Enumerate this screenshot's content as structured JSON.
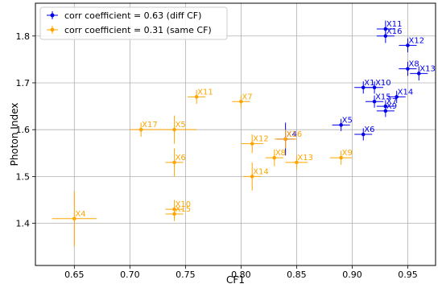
{
  "chart_data": {
    "type": "scatter",
    "title": "",
    "xlabel": "CF1",
    "ylabel": "Photon Index",
    "xlim": [
      0.615,
      0.975
    ],
    "ylim": [
      1.31,
      1.87
    ],
    "xticks": [
      0.65,
      0.7,
      0.75,
      0.8,
      0.85,
      0.9,
      0.95
    ],
    "xtick_labels": [
      "0.65",
      "0.70",
      "0.75",
      "0.80",
      "0.85",
      "0.90",
      "0.95"
    ],
    "yticks": [
      1.4,
      1.5,
      1.6,
      1.7,
      1.8
    ],
    "ytick_labels": [
      "1.4",
      "1.5",
      "1.6",
      "1.7",
      "1.8"
    ],
    "grid": true,
    "legend_position": "top-left",
    "series": [
      {
        "name": "corr coefficient = 0.63 (diff CF)",
        "color": "#0000ee",
        "points": [
          {
            "label": "X11",
            "x": 0.93,
            "y": 1.815,
            "xerr": 0.008,
            "yerr": 0.018
          },
          {
            "label": "X16",
            "x": 0.93,
            "y": 1.8,
            "xerr": 0.008,
            "yerr": 0.015
          },
          {
            "label": "X12",
            "x": 0.95,
            "y": 1.78,
            "xerr": 0.008,
            "yerr": 0.015
          },
          {
            "label": "X8",
            "x": 0.95,
            "y": 1.73,
            "xerr": 0.008,
            "yerr": 0.015
          },
          {
            "label": "X13",
            "x": 0.96,
            "y": 1.72,
            "xerr": 0.008,
            "yerr": 0.015
          },
          {
            "label": "X1",
            "x": 0.91,
            "y": 1.69,
            "xerr": 0.008,
            "yerr": 0.013
          },
          {
            "label": "X10",
            "x": 0.92,
            "y": 1.69,
            "xerr": 0.008,
            "yerr": 0.013
          },
          {
            "label": "X14",
            "x": 0.94,
            "y": 1.67,
            "xerr": 0.008,
            "yerr": 0.013
          },
          {
            "label": "X15",
            "x": 0.92,
            "y": 1.66,
            "xerr": 0.008,
            "yerr": 0.013
          },
          {
            "label": "X7",
            "x": 0.93,
            "y": 1.65,
            "xerr": 0.008,
            "yerr": 0.013
          },
          {
            "label": "X9",
            "x": 0.93,
            "y": 1.64,
            "xerr": 0.008,
            "yerr": 0.013
          },
          {
            "label": "X5",
            "x": 0.89,
            "y": 1.61,
            "xerr": 0.008,
            "yerr": 0.013
          },
          {
            "label": "X6",
            "x": 0.91,
            "y": 1.59,
            "xerr": 0.008,
            "yerr": 0.013
          },
          {
            "label": "X4",
            "x": 0.84,
            "y": 1.58,
            "xerr": 0.008,
            "yerr": 0.035
          }
        ]
      },
      {
        "name": "corr coefficient = 0.31 (same CF)",
        "color": "#ffa500",
        "points": [
          {
            "label": "X11",
            "x": 0.76,
            "y": 1.67,
            "xerr": 0.008,
            "yerr": 0.015
          },
          {
            "label": "X7",
            "x": 0.8,
            "y": 1.66,
            "xerr": 0.008,
            "yerr": 0.013
          },
          {
            "label": "X17",
            "x": 0.71,
            "y": 1.6,
            "xerr": 0.01,
            "yerr": 0.015
          },
          {
            "label": "X5",
            "x": 0.74,
            "y": 1.6,
            "xerr": 0.02,
            "yerr": 0.03
          },
          {
            "label": "X16",
            "x": 0.84,
            "y": 1.58,
            "xerr": 0.01,
            "yerr": 0.02
          },
          {
            "label": "X12",
            "x": 0.81,
            "y": 1.57,
            "xerr": 0.01,
            "yerr": 0.02
          },
          {
            "label": "X8",
            "x": 0.83,
            "y": 1.54,
            "xerr": 0.008,
            "yerr": 0.018
          },
          {
            "label": "X9",
            "x": 0.89,
            "y": 1.54,
            "xerr": 0.01,
            "yerr": 0.015
          },
          {
            "label": "X6",
            "x": 0.74,
            "y": 1.53,
            "xerr": 0.008,
            "yerr": 0.03
          },
          {
            "label": "X13",
            "x": 0.85,
            "y": 1.53,
            "xerr": 0.01,
            "yerr": 0.015
          },
          {
            "label": "X14",
            "x": 0.81,
            "y": 1.5,
            "xerr": 0.008,
            "yerr": 0.03
          },
          {
            "label": "X10",
            "x": 0.74,
            "y": 1.43,
            "xerr": 0.008,
            "yerr": 0.02
          },
          {
            "label": "X15",
            "x": 0.74,
            "y": 1.42,
            "xerr": 0.008,
            "yerr": 0.015
          },
          {
            "label": "X4",
            "x": 0.65,
            "y": 1.41,
            "xerr": 0.02,
            "yerr": 0.06
          }
        ]
      }
    ]
  }
}
